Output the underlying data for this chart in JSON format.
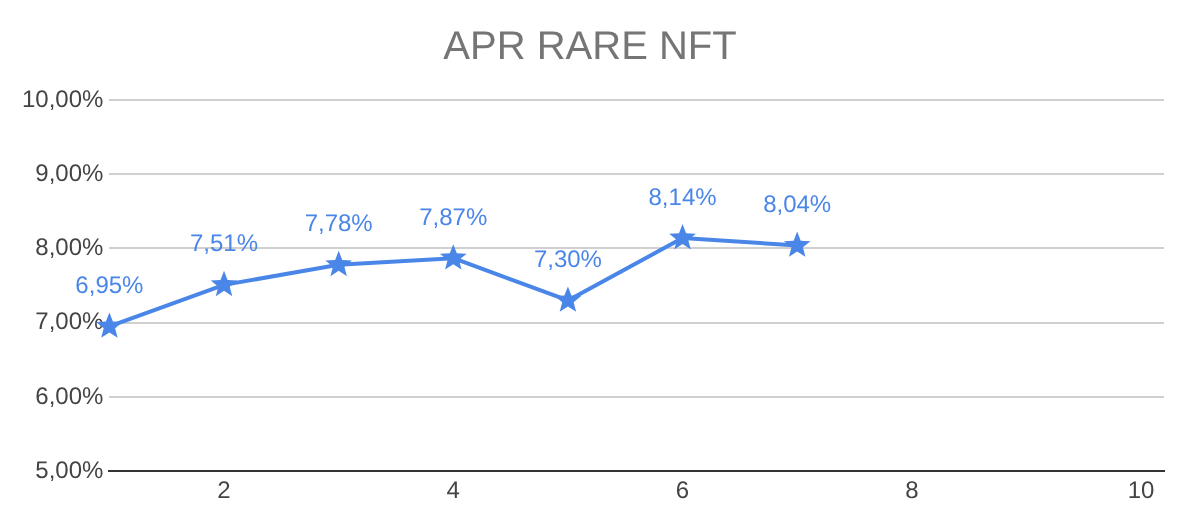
{
  "chart_data": {
    "type": "line",
    "title": "APR RARE NFT",
    "x": [
      1,
      2,
      3,
      4,
      5,
      6,
      7
    ],
    "series": [
      {
        "color": "#4a86e8",
        "values": [
          6.95,
          7.51,
          7.78,
          7.87,
          7.3,
          8.14,
          8.04
        ],
        "value_labels": [
          "6,95%",
          "7,51%",
          "7,78%",
          "7,87%",
          "7,30%",
          "8,14%",
          "8,04%"
        ]
      }
    ],
    "xlim": [
      1,
      10.2
    ],
    "xticks": [
      2,
      4,
      6,
      8,
      10
    ],
    "ylim": [
      5,
      10
    ],
    "yticks": [
      {
        "value": 5,
        "label": "5,00%"
      },
      {
        "value": 6,
        "label": "6,00%"
      },
      {
        "value": 7,
        "label": "7,00%"
      },
      {
        "value": 8,
        "label": "8,00%"
      },
      {
        "value": 9,
        "label": "9,00%"
      },
      {
        "value": 10,
        "label": "10,00%"
      }
    ],
    "grid": "y",
    "marker": "star",
    "line_style": "solid",
    "legend": false
  }
}
